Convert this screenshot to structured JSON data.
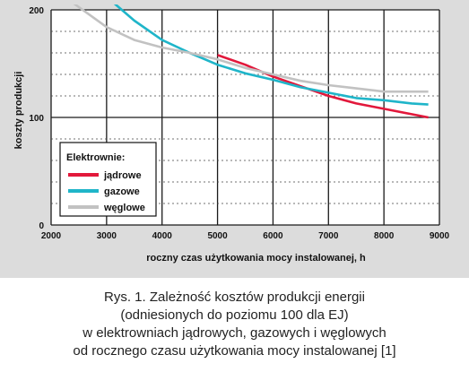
{
  "chart_data": {
    "type": "line",
    "title": "",
    "xlabel": "roczny czas użytkowania mocy instalowanej, h",
    "ylabel": "koszty produkcji",
    "xlim": [
      2000,
      9000
    ],
    "ylim": [
      0,
      200
    ],
    "x_ticks": [
      2000,
      3000,
      4000,
      5000,
      6000,
      7000,
      8000,
      9000
    ],
    "y_ticks": [
      0,
      100,
      200
    ],
    "grid": true,
    "legend": {
      "title": "Elektrownie:",
      "placement": "bottom-left"
    },
    "series": [
      {
        "name": "jądrowe",
        "color": "#e2183b",
        "points": [
          [
            5000,
            158
          ],
          [
            5500,
            149
          ],
          [
            6000,
            138
          ],
          [
            6500,
            129
          ],
          [
            7000,
            120
          ],
          [
            7500,
            113
          ],
          [
            8000,
            108
          ],
          [
            8500,
            103
          ],
          [
            8800,
            100
          ]
        ]
      },
      {
        "name": "gazowe",
        "color": "#1fb5c9",
        "points": [
          [
            3050,
            210
          ],
          [
            3500,
            190
          ],
          [
            4000,
            172
          ],
          [
            4500,
            160
          ],
          [
            5000,
            149
          ],
          [
            5500,
            141
          ],
          [
            6000,
            135
          ],
          [
            6500,
            128
          ],
          [
            7000,
            123
          ],
          [
            7500,
            118
          ],
          [
            8000,
            116
          ],
          [
            8500,
            113
          ],
          [
            8800,
            112
          ]
        ]
      },
      {
        "name": "węglowe",
        "color": "#c2c2c2",
        "points": [
          [
            2300,
            210
          ],
          [
            3000,
            184
          ],
          [
            3500,
            172
          ],
          [
            4000,
            165
          ],
          [
            4500,
            160
          ],
          [
            5000,
            154
          ],
          [
            5500,
            146
          ],
          [
            6000,
            140
          ],
          [
            6500,
            134
          ],
          [
            7000,
            130
          ],
          [
            7500,
            127
          ],
          [
            8000,
            124
          ],
          [
            8800,
            124
          ]
        ]
      }
    ]
  },
  "caption": {
    "lines": [
      "Rys. 1. Zależność kosztów produkcji energii",
      "(odniesionych do poziomu 100 dla EJ)",
      "w elektrowniach jądrowych, gazowych i węglowych",
      "od rocznego czasu użytkowania mocy instalowanej [1]"
    ]
  }
}
